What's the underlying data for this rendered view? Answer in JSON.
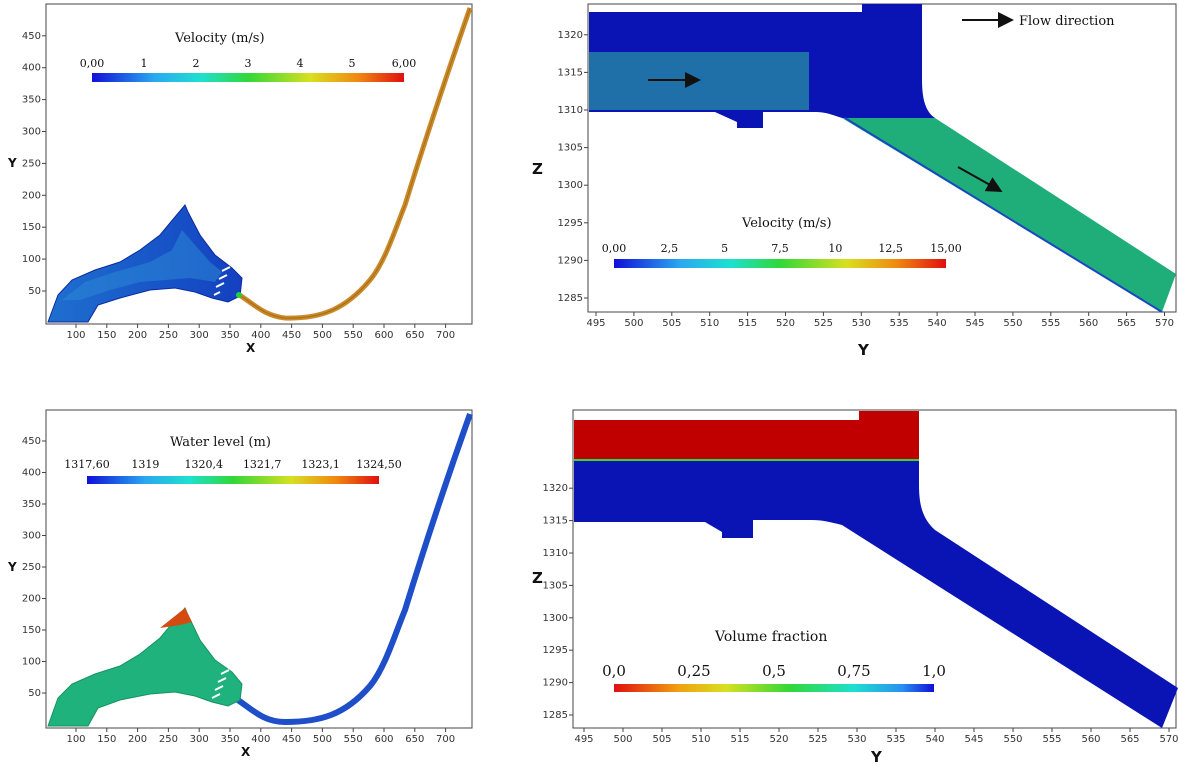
{
  "chart_data": [
    {
      "type": "contour-plan",
      "xlabel": "X",
      "ylabel": "Y",
      "xticks": [
        "100",
        "150",
        "200",
        "250",
        "300",
        "350",
        "400",
        "450",
        "500",
        "550",
        "600",
        "650",
        "700"
      ],
      "yticks": [
        "50",
        "100",
        "150",
        "200",
        "250",
        "300",
        "350",
        "400",
        "450"
      ],
      "colorbar": {
        "title": "Velocity (m/s)",
        "labels": [
          "0,00",
          "1",
          "2",
          "3",
          "4",
          "5",
          "6,00"
        ],
        "min": 0,
        "max": 6,
        "scheme": "blue-cyan-green-yellow-red"
      }
    },
    {
      "type": "contour-section",
      "xlabel": "Y",
      "ylabel": "Z",
      "xticks": [
        "495",
        "500",
        "505",
        "510",
        "515",
        "520",
        "525",
        "530",
        "535",
        "540",
        "545",
        "550",
        "555",
        "560",
        "565",
        "570"
      ],
      "yticks": [
        "1285",
        "1290",
        "1295",
        "1300",
        "1305",
        "1310",
        "1315",
        "1320"
      ],
      "colorbar": {
        "title": "Velocity (m/s)",
        "labels": [
          "0,00",
          "2,5",
          "5",
          "7,5",
          "10",
          "12,5",
          "15,00"
        ],
        "min": 0,
        "max": 15,
        "scheme": "blue-cyan-green-yellow-red"
      },
      "annotation": "Flow direction"
    },
    {
      "type": "contour-plan",
      "xlabel": "X",
      "ylabel": "Y",
      "xticks": [
        "100",
        "150",
        "200",
        "250",
        "300",
        "350",
        "400",
        "450",
        "500",
        "550",
        "600",
        "650",
        "700"
      ],
      "yticks": [
        "50",
        "100",
        "150",
        "200",
        "250",
        "300",
        "350",
        "400",
        "450"
      ],
      "colorbar": {
        "title": "Water level   (m)",
        "labels": [
          "1317,60",
          "1319",
          "1320,4",
          "1321,7",
          "1323,1",
          "1324,50"
        ],
        "min": 1317.6,
        "max": 1324.5,
        "scheme": "blue-cyan-green-yellow-red"
      }
    },
    {
      "type": "contour-section",
      "xlabel": "Y",
      "ylabel": "Z",
      "xticks": [
        "495",
        "500",
        "505",
        "510",
        "515",
        "520",
        "525",
        "530",
        "535",
        "540",
        "545",
        "550",
        "555",
        "560",
        "565",
        "570"
      ],
      "yticks": [
        "1285",
        "1290",
        "1295",
        "1300",
        "1305",
        "1310",
        "1315",
        "1320"
      ],
      "colorbar": {
        "title": "Volume fraction",
        "labels": [
          "0,0",
          "0,25",
          "0,5",
          "0,75",
          "1,0"
        ],
        "min": 0,
        "max": 1,
        "scheme": "red-yellow-green-cyan-blue"
      }
    }
  ],
  "colors": {
    "deep_blue": "#0a14b4",
    "jet_green": "#1fae7a",
    "jet_red": "#c00000",
    "channel_orange": "#c98a28",
    "steel_blue": "#1f6fa8"
  }
}
